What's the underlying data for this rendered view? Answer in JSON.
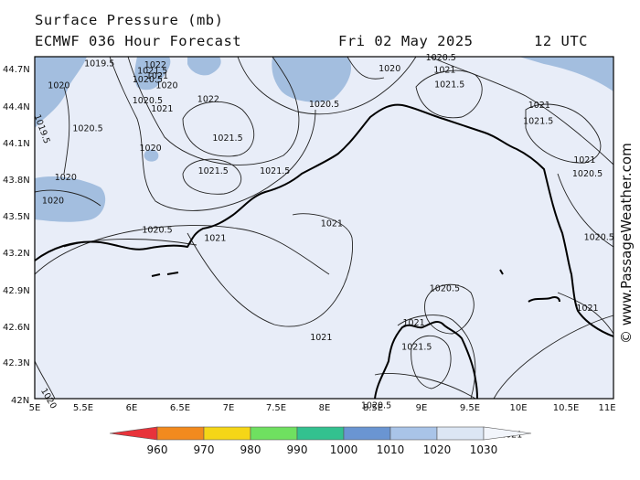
{
  "header": {
    "title": "Surface Pressure (mb)",
    "model_line": "ECMWF 036 Hour Forecast",
    "date": "Fri 02 May 2025",
    "time": "12 UTC"
  },
  "axes": {
    "lat_labels": [
      "44.7N",
      "44.4N",
      "44.1N",
      "43.8N",
      "43.5N",
      "43.2N",
      "42.9N",
      "42.6N",
      "42.3N",
      "42N"
    ],
    "lon_labels": [
      "5E",
      "5.5E",
      "6E",
      "6.5E",
      "7E",
      "7.5E",
      "8E",
      "8.5E",
      "9E",
      "9.5E",
      "10E",
      "10.5E",
      "11E"
    ]
  },
  "isobar_labels": [
    {
      "text": "1019.5",
      "lon": 5.67,
      "lat": 44.72
    },
    {
      "text": "1022",
      "lon": 6.25,
      "lat": 44.71
    },
    {
      "text": "1021.5",
      "lon": 6.22,
      "lat": 44.66
    },
    {
      "text": "1021",
      "lon": 6.27,
      "lat": 44.62
    },
    {
      "text": "1020.5",
      "lon": 6.17,
      "lat": 44.59
    },
    {
      "text": "1020",
      "lon": 6.37,
      "lat": 44.54
    },
    {
      "text": "1020",
      "lon": 5.25,
      "lat": 44.54
    },
    {
      "text": "1020.5",
      "lon": 6.17,
      "lat": 44.42
    },
    {
      "text": "1021",
      "lon": 6.32,
      "lat": 44.35
    },
    {
      "text": "1022",
      "lon": 6.8,
      "lat": 44.43
    },
    {
      "text": "1019.5",
      "lon": 5.05,
      "lat": 44.2
    },
    {
      "text": "1020.5",
      "lon": 5.55,
      "lat": 44.19
    },
    {
      "text": "1021.5",
      "lon": 7.0,
      "lat": 44.11
    },
    {
      "text": "1020",
      "lon": 6.2,
      "lat": 44.03
    },
    {
      "text": "1021.5",
      "lon": 6.85,
      "lat": 43.84
    },
    {
      "text": "1021.5",
      "lon": 7.49,
      "lat": 43.84
    },
    {
      "text": "1020",
      "lon": 5.32,
      "lat": 43.79
    },
    {
      "text": "1020",
      "lon": 5.19,
      "lat": 43.6
    },
    {
      "text": "1020.5",
      "lon": 8.0,
      "lat": 44.39
    },
    {
      "text": "1021",
      "lon": 8.08,
      "lat": 43.41
    },
    {
      "text": "1020.5",
      "lon": 6.27,
      "lat": 43.36
    },
    {
      "text": "1021",
      "lon": 6.87,
      "lat": 43.29
    },
    {
      "text": "1020",
      "lon": 8.68,
      "lat": 44.68
    },
    {
      "text": "1020.5",
      "lon": 9.21,
      "lat": 44.77
    },
    {
      "text": "1021",
      "lon": 9.25,
      "lat": 44.67
    },
    {
      "text": "1021.5",
      "lon": 9.3,
      "lat": 44.55
    },
    {
      "text": "1021",
      "lon": 10.23,
      "lat": 44.38
    },
    {
      "text": "1021.5",
      "lon": 10.22,
      "lat": 44.25
    },
    {
      "text": "1021",
      "lon": 10.7,
      "lat": 43.93
    },
    {
      "text": "1020.5",
      "lon": 10.73,
      "lat": 43.82
    },
    {
      "text": "1020.5",
      "lon": 10.85,
      "lat": 43.3
    },
    {
      "text": "1020.5",
      "lon": 9.25,
      "lat": 42.88
    },
    {
      "text": "1021",
      "lon": 8.93,
      "lat": 42.6
    },
    {
      "text": "1021",
      "lon": 10.73,
      "lat": 42.72
    },
    {
      "text": "1021",
      "lon": 7.97,
      "lat": 42.48
    },
    {
      "text": "1021.5",
      "lon": 8.96,
      "lat": 42.4
    },
    {
      "text": "1020.5",
      "lon": 8.54,
      "lat": 41.92
    },
    {
      "text": "1021",
      "lon": 9.94,
      "lat": 41.68
    },
    {
      "text": "1020",
      "lon": 5.12,
      "lat": 41.99
    }
  ],
  "legend": {
    "ticks": [
      "960",
      "970",
      "980",
      "990",
      "1000",
      "1010",
      "1020",
      "1030"
    ],
    "colors": [
      "#e8333b",
      "#f28a1e",
      "#f5d617",
      "#6fe060",
      "#33c18f",
      "#6a95d2",
      "#a9c4e8",
      "#dce6f4",
      "#f2f5fb"
    ]
  },
  "colors": {
    "land_fill": "#e8edf8",
    "high_fill": "#a3bedf"
  },
  "credit": "© www.PassageWeather.com"
}
